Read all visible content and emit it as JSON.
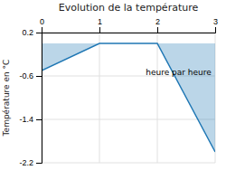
{
  "chart_data": {
    "type": "area",
    "title": "Evolution de la température",
    "ylabel": "Température en °C",
    "annotations": [
      {
        "text": "heure par heure",
        "x": 1.8,
        "y": -0.45
      }
    ],
    "x": [
      0,
      1,
      2,
      3
    ],
    "values": [
      -0.5,
      0.0,
      0.0,
      -2.0
    ],
    "xlim": [
      0,
      3
    ],
    "ylim": [
      -2.2,
      0.2
    ],
    "xticks": [
      0,
      1,
      2,
      3
    ],
    "yticks": [
      0.2,
      -0.6,
      -1.4,
      -2.2
    ],
    "grid": true
  }
}
